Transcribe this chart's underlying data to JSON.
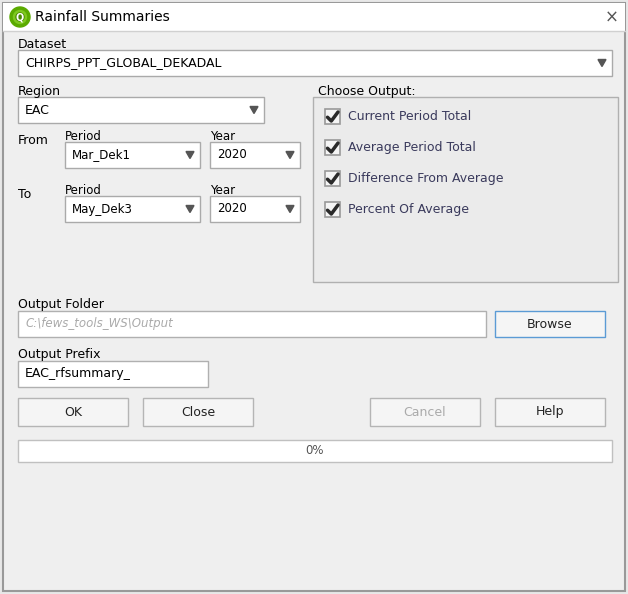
{
  "title": "Rainfall Summaries",
  "bg_color": "#e8e8e8",
  "dialog_bg": "#efefef",
  "white": "#ffffff",
  "border_color": "#c0c0c0",
  "blue_border": "#5b9bd5",
  "text_color": "#000000",
  "gray_text": "#aaaaaa",
  "dataset_label": "Dataset",
  "dataset_value": "CHIRPS_PPT_GLOBAL_DEKADAL",
  "region_label": "Region",
  "region_value": "EAC",
  "from_label": "From",
  "to_label": "To",
  "period_label": "Period",
  "year_label": "Year",
  "from_period": "Mar_Dek1",
  "from_year": "2020",
  "to_period": "May_Dek3",
  "to_year": "2020",
  "choose_output_label": "Choose Output:",
  "output_options": [
    "Current Period Total",
    "Average Period Total",
    "Difference From Average",
    "Percent Of Average"
  ],
  "output_folder_label": "Output Folder",
  "output_folder_value": "C:\\fews_tools_WS\\Output",
  "browse_label": "Browse",
  "output_prefix_label": "Output Prefix",
  "output_prefix_value": "EAC_rfsummary_",
  "buttons": [
    "OK",
    "Close",
    "Cancel",
    "Help"
  ],
  "progress_text": "0%",
  "close_x": "×",
  "check_color": "#2a2a2a",
  "option_text_color": "#3a3a5c"
}
